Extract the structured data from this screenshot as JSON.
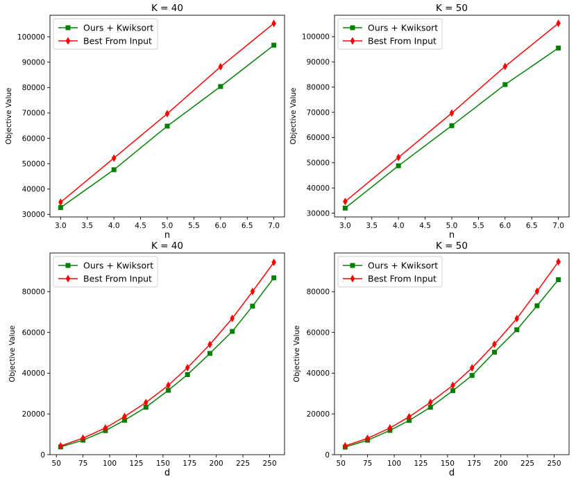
{
  "chart_data": [
    {
      "type": "line",
      "title": "K = 40",
      "xlabel": "n",
      "ylabel": "Objective Value",
      "xlim": [
        2.8,
        7.2
      ],
      "ylim": [
        29000,
        108500
      ],
      "xticks": [
        3.0,
        3.5,
        4.0,
        4.5,
        5.0,
        5.5,
        6.0,
        6.5,
        7.0
      ],
      "xtick_labels": [
        "3.0",
        "3.5",
        "4.0",
        "4.5",
        "5.0",
        "5.5",
        "6.0",
        "6.5",
        "7.0"
      ],
      "yticks": [
        30000,
        40000,
        50000,
        60000,
        70000,
        80000,
        90000,
        100000
      ],
      "ytick_labels": [
        "30000",
        "40000",
        "50000",
        "60000",
        "70000",
        "80000",
        "90000",
        "100000"
      ],
      "grid": false,
      "legend_position": "top-left",
      "x": [
        3,
        4,
        5,
        6,
        7
      ],
      "series": [
        {
          "name": "Ours + Kwiksort",
          "color": "#008000",
          "marker": "square",
          "values": [
            32700,
            47600,
            64800,
            80400,
            96700
          ]
        },
        {
          "name": "Best From Input",
          "color": "#ff0000",
          "marker": "thin-diamond",
          "values": [
            34800,
            52200,
            69700,
            88200,
            105300
          ]
        }
      ]
    },
    {
      "type": "line",
      "title": "K = 50",
      "xlabel": "n",
      "ylabel": "Objective Value",
      "xlim": [
        2.8,
        7.2
      ],
      "ylim": [
        28500,
        108500
      ],
      "xticks": [
        3.0,
        3.5,
        4.0,
        4.5,
        5.0,
        5.5,
        6.0,
        6.5,
        7.0
      ],
      "xtick_labels": [
        "3.0",
        "3.5",
        "4.0",
        "4.5",
        "5.0",
        "5.5",
        "6.0",
        "6.5",
        "7.0"
      ],
      "yticks": [
        30000,
        40000,
        50000,
        60000,
        70000,
        80000,
        90000,
        100000
      ],
      "ytick_labels": [
        "30000",
        "40000",
        "50000",
        "60000",
        "70000",
        "80000",
        "90000",
        "100000"
      ],
      "grid": false,
      "legend_position": "top-left",
      "x": [
        3,
        4,
        5,
        6,
        7
      ],
      "series": [
        {
          "name": "Ours + Kwiksort",
          "color": "#008000",
          "marker": "square",
          "values": [
            32000,
            48800,
            64700,
            81000,
            95500
          ]
        },
        {
          "name": "Best From Input",
          "color": "#ff0000",
          "marker": "thin-diamond",
          "values": [
            34600,
            52100,
            69700,
            88200,
            105300
          ]
        }
      ]
    },
    {
      "type": "line",
      "title": "K = 40",
      "xlabel": "d",
      "ylabel": "Objective Value",
      "xlim": [
        44,
        264
      ],
      "ylim": [
        0,
        99000
      ],
      "xticks": [
        50,
        75,
        100,
        125,
        150,
        175,
        200,
        225,
        250
      ],
      "xtick_labels": [
        "50",
        "75",
        "100",
        "125",
        "150",
        "175",
        "200",
        "225",
        "250"
      ],
      "yticks": [
        0,
        20000,
        40000,
        60000,
        80000
      ],
      "ytick_labels": [
        "0",
        "20000",
        "40000",
        "60000",
        "80000"
      ],
      "grid": false,
      "legend_position": "top-left",
      "x": [
        54,
        75,
        96,
        114,
        134,
        155,
        173,
        194,
        215,
        234,
        254
      ],
      "series": [
        {
          "name": "Ours + Kwiksort",
          "color": "#008000",
          "marker": "square",
          "values": [
            3800,
            7100,
            11800,
            16900,
            23300,
            31600,
            39300,
            49700,
            60500,
            72900,
            86800
          ]
        },
        {
          "name": "Best From Input",
          "color": "#ff0000",
          "marker": "thin-diamond",
          "values": [
            4300,
            8100,
            13100,
            18700,
            25600,
            34000,
            42700,
            54100,
            66900,
            80100,
            94400
          ]
        }
      ]
    },
    {
      "type": "line",
      "title": "K = 50",
      "xlabel": "d",
      "ylabel": "Objective Value",
      "xlim": [
        44,
        264
      ],
      "ylim": [
        0,
        99000
      ],
      "xticks": [
        50,
        75,
        100,
        125,
        150,
        175,
        200,
        225,
        250
      ],
      "xtick_labels": [
        "50",
        "75",
        "100",
        "125",
        "150",
        "175",
        "200",
        "225",
        "250"
      ],
      "yticks": [
        0,
        20000,
        40000,
        60000,
        80000
      ],
      "ytick_labels": [
        "0",
        "20000",
        "40000",
        "60000",
        "80000"
      ],
      "grid": false,
      "legend_position": "top-left",
      "x": [
        54,
        75,
        96,
        114,
        134,
        155,
        173,
        194,
        215,
        234,
        254
      ],
      "series": [
        {
          "name": "Ours + Kwiksort",
          "color": "#008000",
          "marker": "square",
          "values": [
            3700,
            7100,
            11900,
            16800,
            23300,
            31400,
            38900,
            50300,
            61300,
            73100,
            85900
          ]
        },
        {
          "name": "Best From Input",
          "color": "#ff0000",
          "marker": "thin-diamond",
          "values": [
            4300,
            8000,
            13100,
            18600,
            25700,
            34000,
            42600,
            54200,
            66800,
            80200,
            94700
          ]
        }
      ]
    }
  ]
}
